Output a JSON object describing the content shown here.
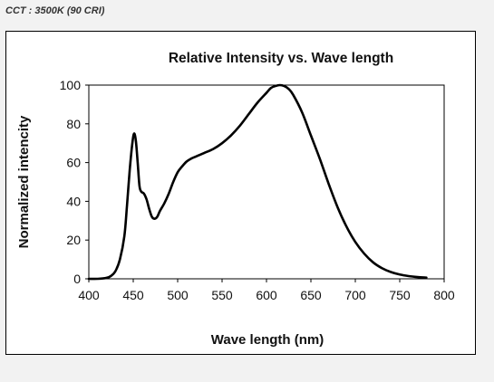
{
  "caption": "CCT : 3500K (90 CRI)",
  "chart_data": {
    "type": "line",
    "title": "Relative Intensity vs. Wave length",
    "xlabel": "Wave length (nm)",
    "ylabel": "Normalized intencity",
    "xlim": [
      400,
      800
    ],
    "ylim": [
      0,
      100
    ],
    "xticks": [
      400,
      450,
      500,
      550,
      600,
      650,
      700,
      750,
      800
    ],
    "yticks": [
      0,
      20,
      40,
      60,
      80,
      100
    ],
    "grid": false,
    "legend": "none",
    "line_color": "#000000",
    "series": [
      {
        "x": [
          400,
          410,
          420,
          425,
          430,
          435,
          440,
          443,
          446,
          449,
          451,
          453,
          455,
          457,
          459,
          462,
          465,
          468,
          471,
          474,
          477,
          480,
          485,
          490,
          495,
          500,
          505,
          510,
          515,
          520,
          525,
          530,
          540,
          550,
          560,
          570,
          580,
          590,
          600,
          605,
          610,
          615,
          620,
          625,
          630,
          640,
          650,
          660,
          670,
          680,
          690,
          700,
          710,
          720,
          730,
          740,
          750,
          760,
          770,
          780
        ],
        "y": [
          0,
          0,
          0.5,
          1.5,
          4,
          10,
          22,
          38,
          56,
          70,
          75,
          71,
          60,
          48,
          45,
          44,
          41,
          36,
          32,
          31,
          32,
          35,
          39,
          44,
          50,
          55,
          58,
          60.5,
          62,
          63,
          64,
          65,
          67,
          70,
          74,
          79,
          85,
          91,
          96,
          98.5,
          99.5,
          100,
          99.5,
          98,
          95,
          86,
          74,
          62,
          49,
          37,
          27,
          19,
          13,
          8.5,
          5.5,
          3.5,
          2.2,
          1.4,
          0.9,
          0.6
        ]
      }
    ]
  }
}
